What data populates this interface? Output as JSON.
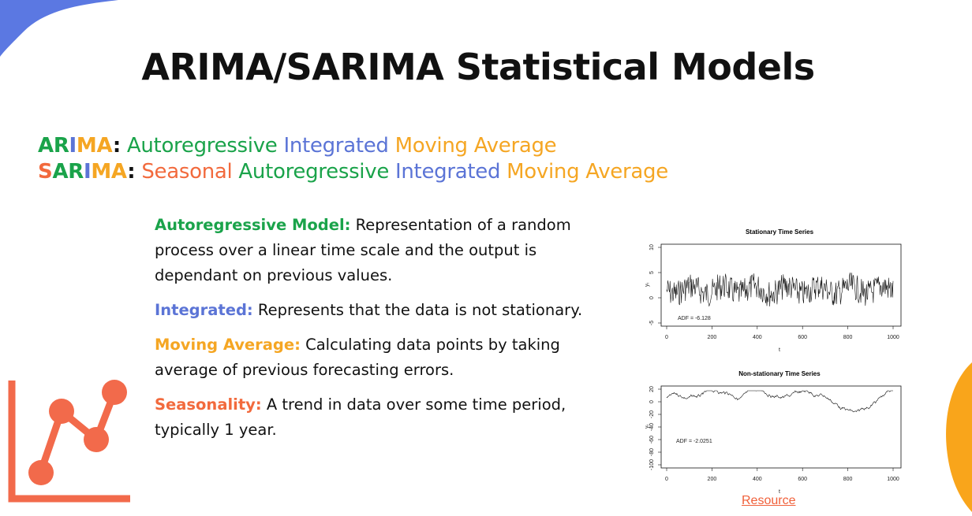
{
  "title": "ARIMA/SARIMA Statistical Models",
  "colors": {
    "green": "#1aa34a",
    "blue": "#5b74d6",
    "orange": "#f5a623",
    "red": "#f26a3d",
    "corner_blue": "#5b78e2",
    "corner_orange": "#f9a51b",
    "icon_red": "#f26a4b"
  },
  "acronyms": {
    "arima": {
      "letters": [
        "AR",
        "I",
        "MA"
      ],
      "colon": ":",
      "words": [
        "Autoregressive",
        "Integrated",
        "Moving Average"
      ]
    },
    "sarima": {
      "letters": [
        "S",
        "AR",
        "I",
        "MA"
      ],
      "colon": ":",
      "words": [
        "Seasonal",
        "Autoregressive",
        "Integrated",
        "Moving Average"
      ]
    }
  },
  "definitions": [
    {
      "term": "Autoregressive Model:",
      "text": " Representation of a random process over a linear time scale and the output is dependant on previous values.",
      "color": "#1aa34a"
    },
    {
      "term": "Integrated:",
      "text": " Represents that the data is not stationary.",
      "color": "#5b74d6"
    },
    {
      "term": "Moving Average:",
      "text": " Calculating data points by taking average of previous forecasting errors.",
      "color": "#f5a623"
    },
    {
      "term": "Seasonality:",
      "text": " A trend in data over some time period, typically 1 year.",
      "color": "#f26a3d"
    }
  ],
  "plots": {
    "stationary": {
      "title": "Stationary Time Series",
      "ylabel": "yₜ",
      "xlabel": "t",
      "annotation": "ADF = -6.128",
      "x_ticks": [
        "0",
        "200",
        "400",
        "600",
        "800",
        "1000"
      ],
      "y_ticks": [
        "10",
        "5",
        "0",
        "-5"
      ]
    },
    "nonstationary": {
      "title": "Non-stationary Time Series",
      "ylabel": "yₜ",
      "xlabel": "t",
      "annotation": "ADF = -2.0251",
      "x_ticks": [
        "0",
        "200",
        "400",
        "600",
        "800",
        "1000"
      ],
      "y_ticks": [
        "20",
        "0",
        "-20",
        "-40",
        "-60",
        "-80",
        "-100"
      ]
    }
  },
  "resource_link": "Resource",
  "icons": {
    "chart_icon": "line-chart-icon"
  }
}
